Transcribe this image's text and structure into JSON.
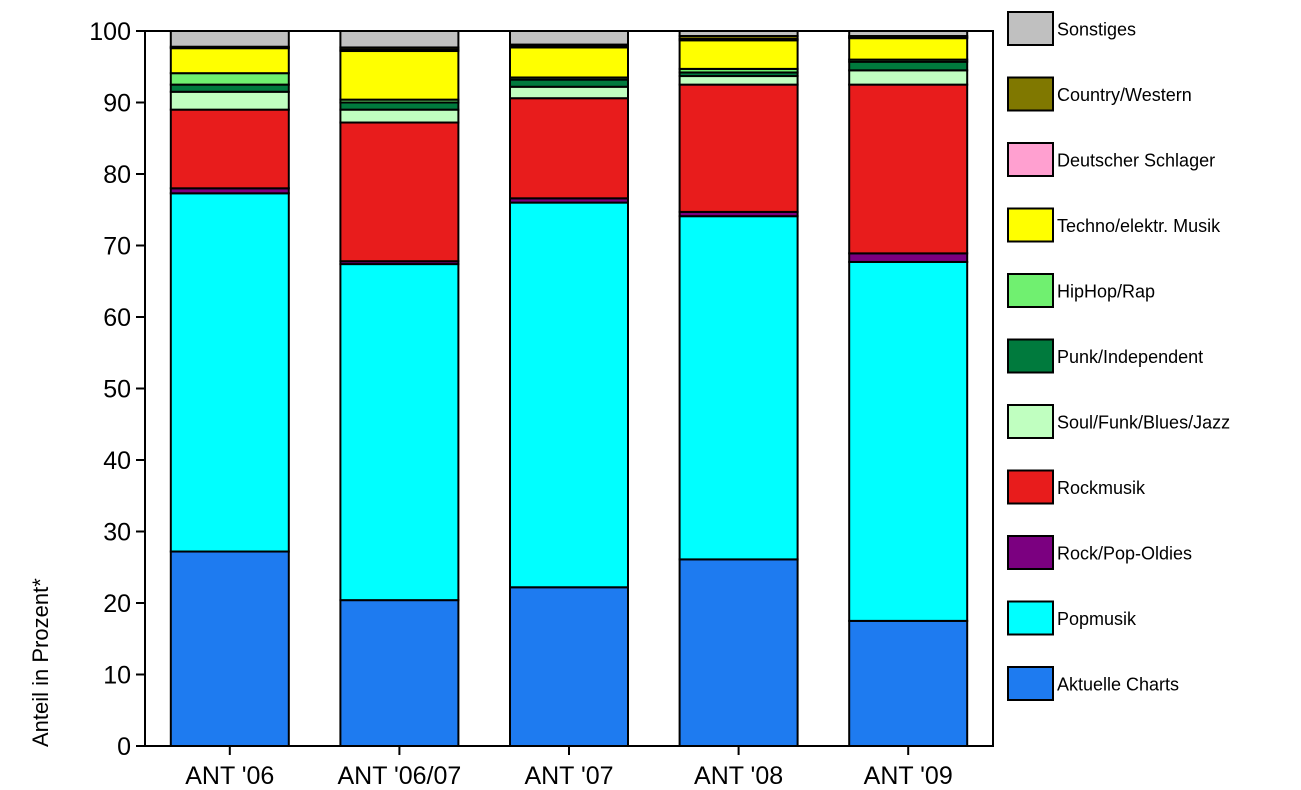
{
  "chart_data": {
    "type": "bar",
    "stacked": true,
    "title": "",
    "xlabel": "",
    "ylabel": "Anteil in Prozent*",
    "ylim": [
      0,
      100
    ],
    "yticks": [
      0,
      10,
      20,
      30,
      40,
      50,
      60,
      70,
      80,
      90,
      100
    ],
    "grid": false,
    "legend_position": "right",
    "categories": [
      "ANT '06",
      "ANT '06/07",
      "ANT '07",
      "ANT '08",
      "ANT '09"
    ],
    "series": [
      {
        "name": "Aktuelle Charts",
        "color": "#1E7BF0",
        "values": [
          27.2,
          20.4,
          22.2,
          26.1,
          17.5
        ]
      },
      {
        "name": "Popmusik",
        "color": "#00FFFF",
        "values": [
          50.1,
          47.0,
          53.8,
          48.0,
          50.2
        ]
      },
      {
        "name": "Rock/Pop-Oldies",
        "color": "#7B0080",
        "values": [
          0.7,
          0.4,
          0.6,
          0.6,
          1.2
        ]
      },
      {
        "name": "Rockmusik",
        "color": "#E81C1C",
        "values": [
          11.0,
          19.4,
          14.0,
          17.8,
          23.6
        ]
      },
      {
        "name": "Soul/Funk/Blues/Jazz",
        "color": "#C0FFC0",
        "values": [
          2.5,
          1.8,
          1.6,
          1.2,
          2.0
        ]
      },
      {
        "name": "Punk/Independent",
        "color": "#007A3D",
        "values": [
          1.0,
          1.0,
          1.0,
          0.5,
          1.2
        ]
      },
      {
        "name": "HipHop/Rap",
        "color": "#70F070",
        "values": [
          1.6,
          0.4,
          0.3,
          0.5,
          0.3
        ]
      },
      {
        "name": "Techno/elektr. Musik",
        "color": "#FFFF00",
        "values": [
          3.5,
          6.8,
          4.2,
          4.0,
          3.0
        ]
      },
      {
        "name": "Deutscher Schlager",
        "color": "#FFA0D0",
        "values": [
          0.0,
          0.2,
          0.2,
          0.2,
          0.1
        ]
      },
      {
        "name": "Country/Western",
        "color": "#807800",
        "values": [
          0.2,
          0.3,
          0.2,
          0.4,
          0.2
        ]
      },
      {
        "name": "Sonstiges",
        "color": "#C0C0C0",
        "values": [
          2.2,
          2.3,
          1.9,
          0.7,
          0.7
        ]
      }
    ]
  }
}
